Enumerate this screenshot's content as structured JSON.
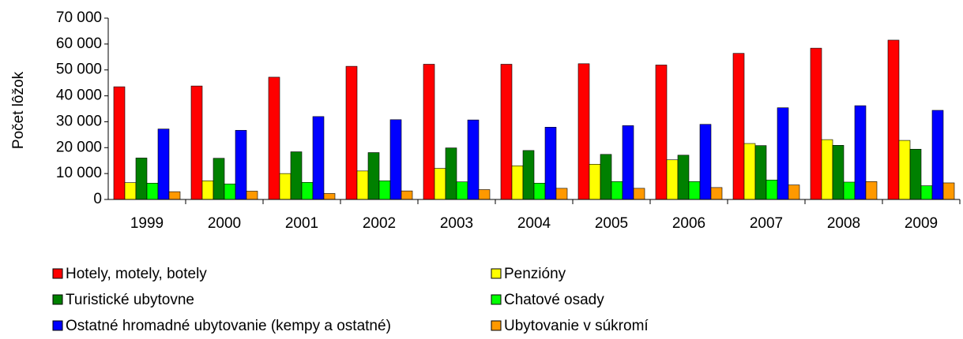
{
  "chart_data": {
    "type": "bar",
    "y_label": "Počet lôžok",
    "categories": [
      "1999",
      "2000",
      "2001",
      "2002",
      "2003",
      "2004",
      "2005",
      "2006",
      "2007",
      "2008",
      "2009"
    ],
    "series": [
      {
        "name": "Hotely, motely, botely",
        "color": "#ff0000",
        "values": [
          43500,
          43800,
          47200,
          51400,
          52200,
          52200,
          52400,
          51900,
          56400,
          58400,
          61500
        ]
      },
      {
        "name": "Penzióny",
        "color": "#ffff00",
        "values": [
          6500,
          7200,
          10000,
          11000,
          12000,
          13000,
          13600,
          15300,
          21600,
          23100,
          22800
        ]
      },
      {
        "name": "Turistické ubytovne",
        "color": "#008000",
        "values": [
          16000,
          15900,
          18400,
          18100,
          19900,
          18900,
          17400,
          17100,
          20800,
          20900,
          19400
        ]
      },
      {
        "name": "Chatové osady",
        "color": "#00ff00",
        "values": [
          6300,
          6000,
          6600,
          7200,
          6800,
          6300,
          6900,
          6900,
          7500,
          6700,
          5300
        ]
      },
      {
        "name": "Ostatné hromadné ubytovanie (kempy a ostatné)",
        "color": "#0000ff",
        "values": [
          27200,
          26700,
          32000,
          30800,
          30700,
          27900,
          28500,
          29000,
          35400,
          36200,
          34400
        ]
      },
      {
        "name": "Ubytovanie v súkromí",
        "color": "#ff9900",
        "values": [
          3000,
          3200,
          2300,
          3300,
          3800,
          4300,
          4300,
          4600,
          5600,
          6900,
          6400
        ]
      }
    ],
    "ylim": [
      0,
      70000
    ],
    "yticks": [
      0,
      {
        "value": 10000,
        "label": "10 000"
      },
      {
        "value": 20000,
        "label": "20 000"
      },
      {
        "value": 30000,
        "label": "30 000"
      },
      {
        "value": 40000,
        "label": "40 000"
      },
      {
        "value": 50000,
        "label": "50 000"
      },
      {
        "value": 60000,
        "label": "60 000"
      },
      {
        "value": 70000,
        "label": "70 000"
      }
    ]
  }
}
